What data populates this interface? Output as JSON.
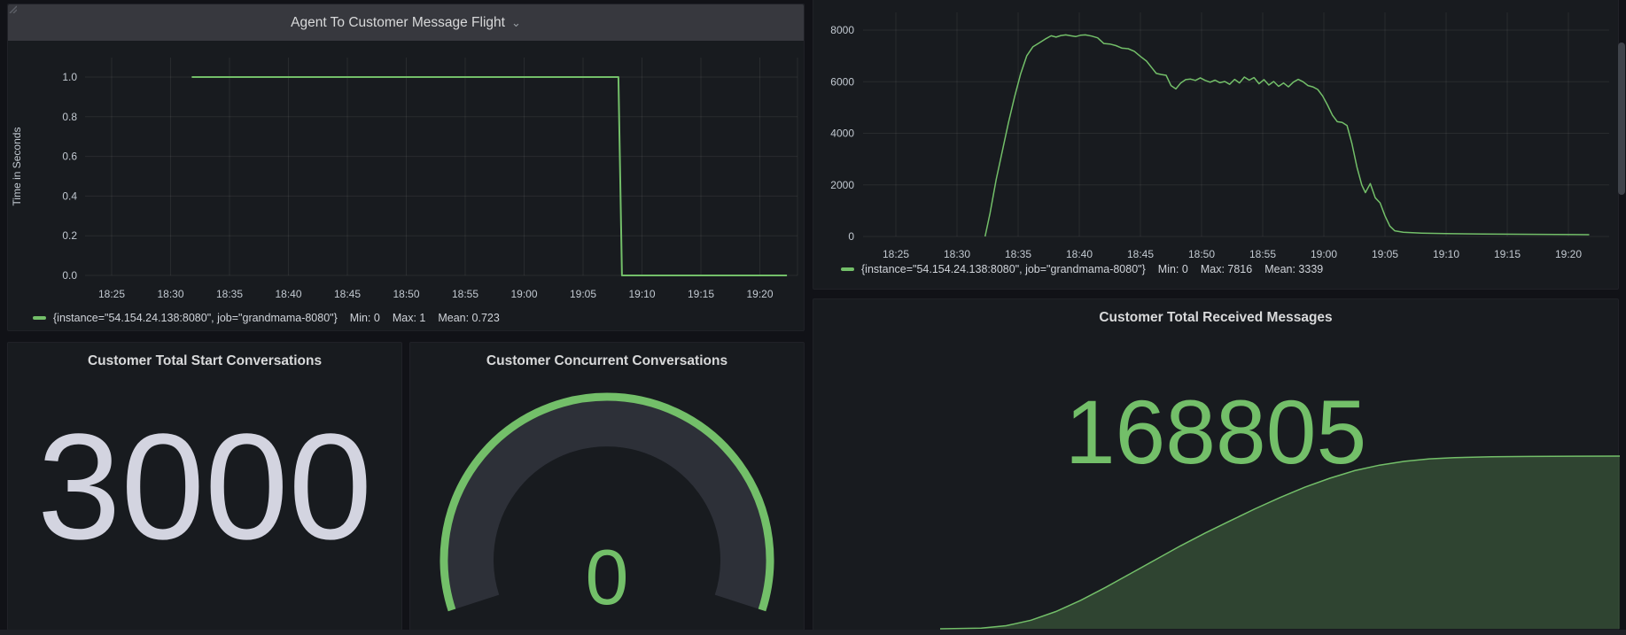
{
  "colors": {
    "green": "#73BF69",
    "area_fill": "rgba(115,191,105,0.25)",
    "grid": "rgba(255,255,255,0.07)",
    "tick_text": "#c2c9d1",
    "panel_bg": "#181b1f",
    "header_bg": "#37383e",
    "stat_white": "#d3d4e0"
  },
  "panels": {
    "flight": {
      "title": "Agent To Customer Message Flight",
      "y_axis_label": "Time in Seconds",
      "legend": {
        "series": "{instance=\"54.154.24.138:8080\", job=\"grandmama-8080\"}",
        "min": "Min: 0",
        "max": "Max: 1",
        "mean": "Mean: 0.723"
      }
    },
    "throughput": {
      "legend": {
        "series": "{instance=\"54.154.24.138:8080\", job=\"grandmama-8080\"}",
        "min": "Min: 0",
        "max": "Max: 7816",
        "mean": "Mean: 3339"
      }
    },
    "start_conversations": {
      "title": "Customer Total Start Conversations",
      "value": "3000"
    },
    "concurrent_conversations": {
      "title": "Customer Concurrent Conversations",
      "value": "0"
    },
    "received_messages": {
      "title": "Customer Total Received Messages",
      "value": "168805"
    }
  },
  "chart_data": [
    {
      "id": "flight",
      "type": "line",
      "title": "Agent To Customer Message Flight",
      "ylabel": "Time in Seconds",
      "ylim": [
        0,
        1
      ],
      "xlim_minutes_after_1800": [
        22.8,
        82.8
      ],
      "grid": true,
      "legend_position": "bottom-left",
      "x_ticks": [
        {
          "m": 25,
          "label": "18:25"
        },
        {
          "m": 30,
          "label": "18:30"
        },
        {
          "m": 35,
          "label": "18:35"
        },
        {
          "m": 40,
          "label": "18:40"
        },
        {
          "m": 45,
          "label": "18:45"
        },
        {
          "m": 50,
          "label": "18:50"
        },
        {
          "m": 55,
          "label": "18:55"
        },
        {
          "m": 60,
          "label": "19:00"
        },
        {
          "m": 65,
          "label": "19:05"
        },
        {
          "m": 70,
          "label": "19:10"
        },
        {
          "m": 75,
          "label": "19:15"
        },
        {
          "m": 80,
          "label": "19:20"
        }
      ],
      "y_ticks": [
        {
          "v": 0,
          "label": "0.0"
        },
        {
          "v": 0.2,
          "label": "0.2"
        },
        {
          "v": 0.4,
          "label": "0.4"
        },
        {
          "v": 0.6,
          "label": "0.6"
        },
        {
          "v": 0.8,
          "label": "0.8"
        },
        {
          "v": 1,
          "label": "1.0"
        }
      ],
      "series": [
        {
          "name": "{instance=\"54.154.24.138:8080\", job=\"grandmama-8080\"}",
          "min": 0,
          "max": 1,
          "mean": 0.723,
          "points": [
            [
              31.8,
              1
            ],
            [
              68.0,
              1
            ],
            [
              68.3,
              0
            ],
            [
              82.3,
              0
            ]
          ]
        }
      ]
    },
    {
      "id": "throughput",
      "type": "line",
      "ylim": [
        0,
        8000
      ],
      "xlim_minutes_after_1800": [
        22.3,
        85.0
      ],
      "grid": true,
      "legend_position": "bottom-left",
      "x_ticks": [
        {
          "m": 25,
          "label": "18:25"
        },
        {
          "m": 30,
          "label": "18:30"
        },
        {
          "m": 35,
          "label": "18:35"
        },
        {
          "m": 40,
          "label": "18:40"
        },
        {
          "m": 45,
          "label": "18:45"
        },
        {
          "m": 50,
          "label": "18:50"
        },
        {
          "m": 55,
          "label": "18:55"
        },
        {
          "m": 60,
          "label": "19:00"
        },
        {
          "m": 65,
          "label": "19:05"
        },
        {
          "m": 70,
          "label": "19:10"
        },
        {
          "m": 75,
          "label": "19:15"
        },
        {
          "m": 80,
          "label": "19:20"
        }
      ],
      "y_ticks": [
        {
          "v": 0,
          "label": "0"
        },
        {
          "v": 2000,
          "label": "2000"
        },
        {
          "v": 4000,
          "label": "4000"
        },
        {
          "v": 6000,
          "label": "6000"
        },
        {
          "v": 8000,
          "label": "8000"
        }
      ],
      "series": [
        {
          "name": "{instance=\"54.154.24.138:8080\", job=\"grandmama-8080\"}",
          "min": 0,
          "max": 7816,
          "mean": 3339,
          "points": [
            [
              32.3,
              0
            ],
            [
              32.7,
              900
            ],
            [
              33.2,
              2200
            ],
            [
              33.7,
              3300
            ],
            [
              34.2,
              4400
            ],
            [
              34.7,
              5400
            ],
            [
              35.2,
              6300
            ],
            [
              35.7,
              7000
            ],
            [
              36.2,
              7350
            ],
            [
              36.7,
              7500
            ],
            [
              37.2,
              7650
            ],
            [
              37.7,
              7780
            ],
            [
              38.1,
              7730
            ],
            [
              38.5,
              7790
            ],
            [
              38.9,
              7816
            ],
            [
              39.3,
              7780
            ],
            [
              39.7,
              7750
            ],
            [
              40.1,
              7800
            ],
            [
              40.5,
              7816
            ],
            [
              41.0,
              7770
            ],
            [
              41.5,
              7700
            ],
            [
              42.0,
              7480
            ],
            [
              42.5,
              7460
            ],
            [
              43.0,
              7400
            ],
            [
              43.5,
              7300
            ],
            [
              44.0,
              7280
            ],
            [
              44.5,
              7180
            ],
            [
              45.0,
              6980
            ],
            [
              45.5,
              6800
            ],
            [
              46.0,
              6500
            ],
            [
              46.3,
              6320
            ],
            [
              46.7,
              6280
            ],
            [
              47.1,
              6250
            ],
            [
              47.5,
              5850
            ],
            [
              47.9,
              5720
            ],
            [
              48.3,
              5950
            ],
            [
              48.7,
              6080
            ],
            [
              49.1,
              6100
            ],
            [
              49.5,
              6050
            ],
            [
              49.9,
              6150
            ],
            [
              50.3,
              6050
            ],
            [
              50.7,
              5980
            ],
            [
              51.1,
              6060
            ],
            [
              51.5,
              5960
            ],
            [
              51.9,
              6010
            ],
            [
              52.3,
              5900
            ],
            [
              52.7,
              6090
            ],
            [
              53.1,
              5950
            ],
            [
              53.5,
              6180
            ],
            [
              53.9,
              6060
            ],
            [
              54.3,
              6160
            ],
            [
              54.7,
              5920
            ],
            [
              55.1,
              6080
            ],
            [
              55.5,
              5870
            ],
            [
              55.9,
              6010
            ],
            [
              56.3,
              5820
            ],
            [
              56.7,
              5950
            ],
            [
              57.1,
              5800
            ],
            [
              57.5,
              5980
            ],
            [
              57.9,
              6090
            ],
            [
              58.3,
              6000
            ],
            [
              58.7,
              5850
            ],
            [
              59.1,
              5800
            ],
            [
              59.5,
              5700
            ],
            [
              59.9,
              5450
            ],
            [
              60.3,
              5100
            ],
            [
              60.7,
              4700
            ],
            [
              61.1,
              4450
            ],
            [
              61.5,
              4420
            ],
            [
              61.9,
              4300
            ],
            [
              62.3,
              3600
            ],
            [
              62.7,
              2700
            ],
            [
              63.1,
              2000
            ],
            [
              63.4,
              1700
            ],
            [
              63.8,
              2050
            ],
            [
              64.2,
              1500
            ],
            [
              64.6,
              1300
            ],
            [
              65.0,
              800
            ],
            [
              65.4,
              400
            ],
            [
              65.8,
              220
            ],
            [
              66.5,
              160
            ],
            [
              68,
              130
            ],
            [
              70,
              110
            ],
            [
              73,
              95
            ],
            [
              76,
              85
            ],
            [
              79,
              75
            ],
            [
              81.7,
              70
            ]
          ]
        }
      ]
    },
    {
      "id": "received",
      "type": "area",
      "title": "Customer Total Received Messages",
      "displayed_value": 168805,
      "ylim": [
        0,
        168805
      ],
      "series": [
        {
          "name": "received-total",
          "points": [
            [
              28.7,
              0
            ],
            [
              32,
              600
            ],
            [
              34,
              3000
            ],
            [
              36,
              8400
            ],
            [
              38,
              16900
            ],
            [
              40,
              27900
            ],
            [
              42,
              40500
            ],
            [
              44,
              54000
            ],
            [
              46,
              67500
            ],
            [
              48,
              81000
            ],
            [
              50,
              93700
            ],
            [
              52,
              105500
            ],
            [
              54,
              117300
            ],
            [
              56,
              128300
            ],
            [
              58,
              138400
            ],
            [
              60,
              147200
            ],
            [
              62,
              154600
            ],
            [
              64,
              160000
            ],
            [
              66,
              163700
            ],
            [
              68,
              166100
            ],
            [
              70,
              167300
            ],
            [
              73,
              168100
            ],
            [
              76,
              168470
            ],
            [
              80,
              168720
            ],
            [
              83.3,
              168805
            ]
          ]
        }
      ]
    }
  ]
}
